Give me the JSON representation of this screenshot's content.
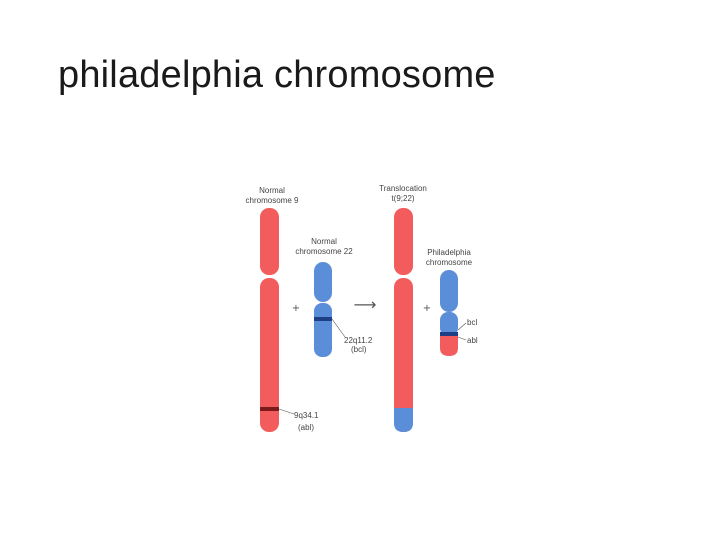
{
  "slide": {
    "title": "philadelphia chromosome"
  },
  "colors": {
    "chromosome_9": "#f25c5c",
    "chromosome_22": "#5b8ed8",
    "band_9": "#7a1a1a",
    "band_22": "#1e3f86",
    "text": "#444444"
  },
  "diagram": {
    "normal_9": {
      "line1": "Normal",
      "line2": "chromosome 9"
    },
    "normal_22": {
      "line1": "Normal",
      "line2": "chromosome 22"
    },
    "translocation": {
      "line1": "Translocation",
      "line2": "t(9;22)"
    },
    "philadelphia": {
      "line1": "Philadelphia",
      "line2": "chromosome"
    },
    "band_22q": {
      "line1": "22q11.2",
      "line2": "(bcl)"
    },
    "band_9q": {
      "line1": "9q34.1",
      "line2": "(abl)"
    },
    "gene_bcl": "bcl",
    "gene_abl": "abl",
    "plus_symbol": "+",
    "arrow_symbol": "⟶"
  }
}
